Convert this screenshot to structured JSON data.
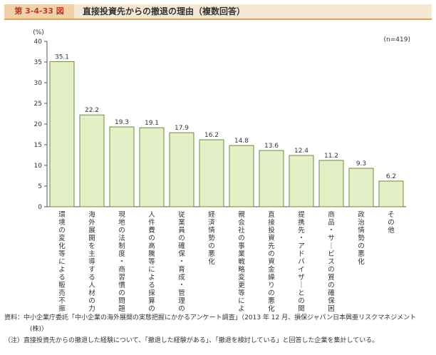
{
  "figure": {
    "number": "第 3-4-33 図",
    "title": "直接投資先からの撤退の理由（複数回答）"
  },
  "chart_data": {
    "type": "bar",
    "unit_label": "(%)",
    "sample_size": "(n=419)",
    "ylim": [
      0,
      40
    ],
    "yticks": [
      0,
      5,
      10,
      15,
      20,
      25,
      30,
      35,
      40
    ],
    "grid": false,
    "categories": [
      "環境の変化等による販売不振",
      "海外展開を主導する人材の力不足",
      "現地の法制度・商習慣の問題",
      "人件費の高騰等による採算の悪化",
      "従業員の確保・育成・管理の困難性",
      "経済情勢の悪化",
      "親会社の事業戦略変更等による再編",
      "直接投資先の資金繰りの悪化",
      "提携先・アドバイザーとの関係悪化",
      "商品・サービスの質の確保困難",
      "政治情勢の悪化",
      "その他"
    ],
    "values": [
      35.1,
      22.2,
      19.3,
      19.1,
      17.9,
      16.2,
      14.8,
      13.6,
      12.4,
      11.2,
      9.3,
      6.2
    ],
    "value_labels": [
      "35.1",
      "22.2",
      "19.3",
      "19.1",
      "17.9",
      "16.2",
      "14.8",
      "13.6",
      "12.4",
      "11.2",
      "9.3",
      "6.2"
    ],
    "colors": {
      "bar_fill": "#e4efc6",
      "bar_stroke": "#6f8a3c",
      "axis": "#555555"
    }
  },
  "notes": {
    "source_line1": "資料：中小企業庁委託「中小企業の海外展開の実態把握にかかるアンケート調査」（2013 年 12 月、損保ジャパン日本興亜リスクマネジメント",
    "source_line2": "(株)）",
    "note": "（注）直接投資先からの撤退した経験について、「撤退した経験がある」、「撤退を検討している」と回答した企業を集計している。"
  }
}
